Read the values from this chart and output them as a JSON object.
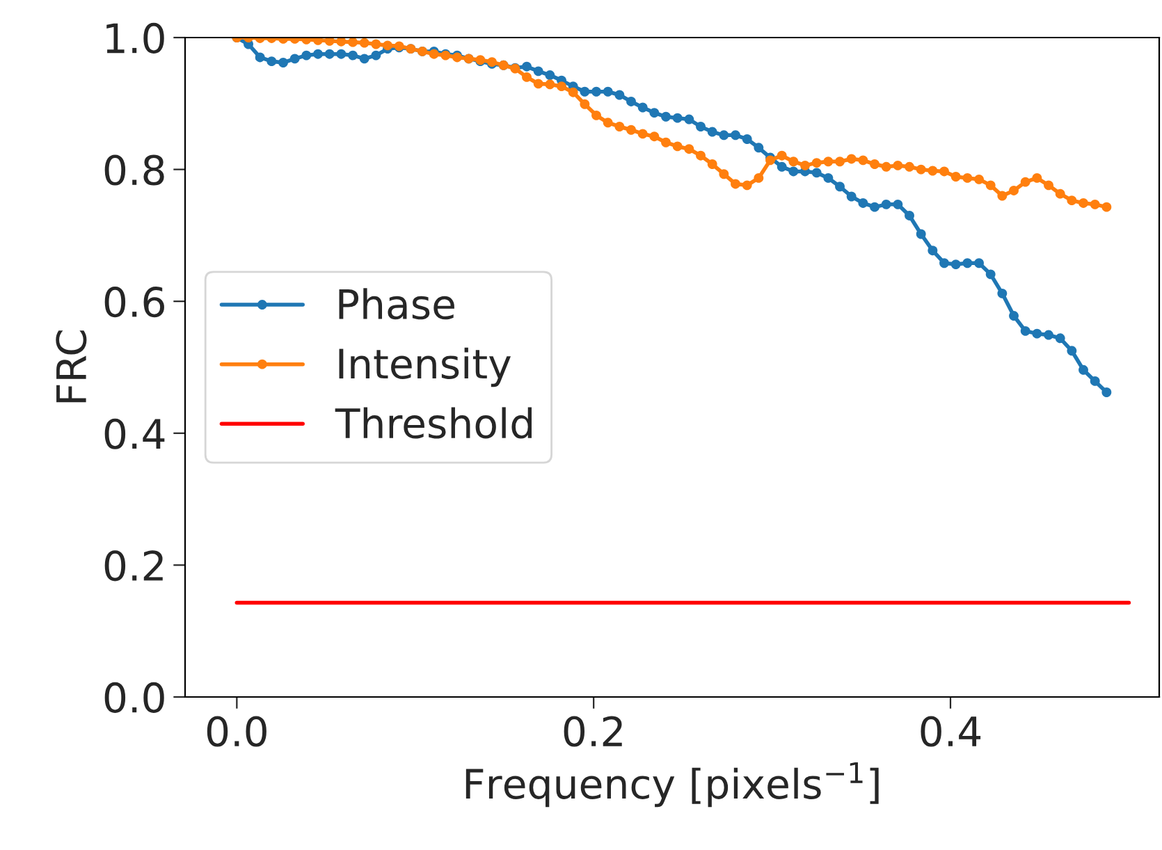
{
  "chart_data": {
    "type": "line",
    "xlabel": "Frequency [pixels$^{−1}$]",
    "ylabel": "FRC",
    "x": [
      0,
      0.0065,
      0.013,
      0.0195,
      0.026,
      0.0325,
      0.039,
      0.0455,
      0.052,
      0.0585,
      0.065,
      0.0715,
      0.078,
      0.0845,
      0.091,
      0.0975,
      0.104,
      0.1105,
      0.117,
      0.1235,
      0.13,
      0.1365,
      0.143,
      0.1495,
      0.156,
      0.1625,
      0.169,
      0.1755,
      0.182,
      0.1885,
      0.195,
      0.2015,
      0.208,
      0.2145,
      0.221,
      0.2275,
      0.234,
      0.2405,
      0.247,
      0.2535,
      0.26,
      0.2665,
      0.273,
      0.2795,
      0.286,
      0.2925,
      0.299,
      0.3055,
      0.312,
      0.3185,
      0.325,
      0.3315,
      0.338,
      0.3445,
      0.351,
      0.3575,
      0.364,
      0.3705,
      0.377,
      0.3835,
      0.39,
      0.3965,
      0.403,
      0.4095,
      0.416,
      0.4225,
      0.429,
      0.4355,
      0.442,
      0.4485,
      0.455,
      0.4615,
      0.468,
      0.4745,
      0.481,
      0.4875
    ],
    "series": [
      {
        "name": "Phase",
        "color": "#1f77b4",
        "values": [
          1.0,
          0.99,
          0.97,
          0.964,
          0.962,
          0.968,
          0.973,
          0.975,
          0.975,
          0.975,
          0.973,
          0.968,
          0.973,
          0.983,
          0.985,
          0.983,
          0.979,
          0.979,
          0.975,
          0.973,
          0.968,
          0.964,
          0.96,
          0.958,
          0.954,
          0.956,
          0.949,
          0.943,
          0.935,
          0.926,
          0.918,
          0.918,
          0.918,
          0.913,
          0.903,
          0.894,
          0.886,
          0.88,
          0.878,
          0.876,
          0.865,
          0.857,
          0.852,
          0.852,
          0.846,
          0.833,
          0.818,
          0.804,
          0.797,
          0.797,
          0.795,
          0.787,
          0.774,
          0.759,
          0.749,
          0.743,
          0.747,
          0.747,
          0.73,
          0.702,
          0.677,
          0.658,
          0.656,
          0.658,
          0.658,
          0.641,
          0.612,
          0.578,
          0.555,
          0.551,
          0.549,
          0.544,
          0.525,
          0.496,
          0.479,
          0.462
        ]
      },
      {
        "name": "Intensity",
        "color": "#ff7f0e",
        "values": [
          1.0,
          1.0,
          0.999,
          0.999,
          0.998,
          0.998,
          0.997,
          0.996,
          0.995,
          0.994,
          0.993,
          0.992,
          0.99,
          0.988,
          0.987,
          0.983,
          0.979,
          0.975,
          0.973,
          0.97,
          0.968,
          0.966,
          0.963,
          0.958,
          0.953,
          0.94,
          0.93,
          0.929,
          0.926,
          0.917,
          0.899,
          0.882,
          0.871,
          0.865,
          0.86,
          0.854,
          0.85,
          0.841,
          0.835,
          0.831,
          0.821,
          0.808,
          0.793,
          0.778,
          0.776,
          0.787,
          0.814,
          0.821,
          0.812,
          0.806,
          0.81,
          0.812,
          0.812,
          0.816,
          0.814,
          0.808,
          0.804,
          0.806,
          0.804,
          0.8,
          0.798,
          0.797,
          0.789,
          0.787,
          0.785,
          0.776,
          0.76,
          0.768,
          0.781,
          0.787,
          0.776,
          0.763,
          0.753,
          0.749,
          0.747,
          0.743
        ]
      },
      {
        "name": "Threshold",
        "color": "#ff0000",
        "marker": "none",
        "x": [
          0,
          0.5
        ],
        "values": [
          0.143,
          0.143
        ]
      }
    ],
    "marker": "circle",
    "line_style": "solid",
    "legend": "left",
    "grid": false,
    "xlim": [
      -0.029,
      0.517
    ],
    "xticks": [
      {
        "value": 0,
        "label": "0.0"
      },
      {
        "value": 0.2,
        "label": "0.2"
      },
      {
        "value": 0.4,
        "label": "0.4"
      }
    ],
    "ylim": [
      0,
      1
    ],
    "yticks": [
      {
        "value": 0,
        "label": "0.0"
      },
      {
        "value": 0.2,
        "label": "0.2"
      },
      {
        "value": 0.4,
        "label": "0.4"
      },
      {
        "value": 0.6,
        "label": "0.6"
      },
      {
        "value": 0.8,
        "label": "0.8"
      },
      {
        "value": 1.0,
        "label": "1.0"
      }
    ]
  }
}
